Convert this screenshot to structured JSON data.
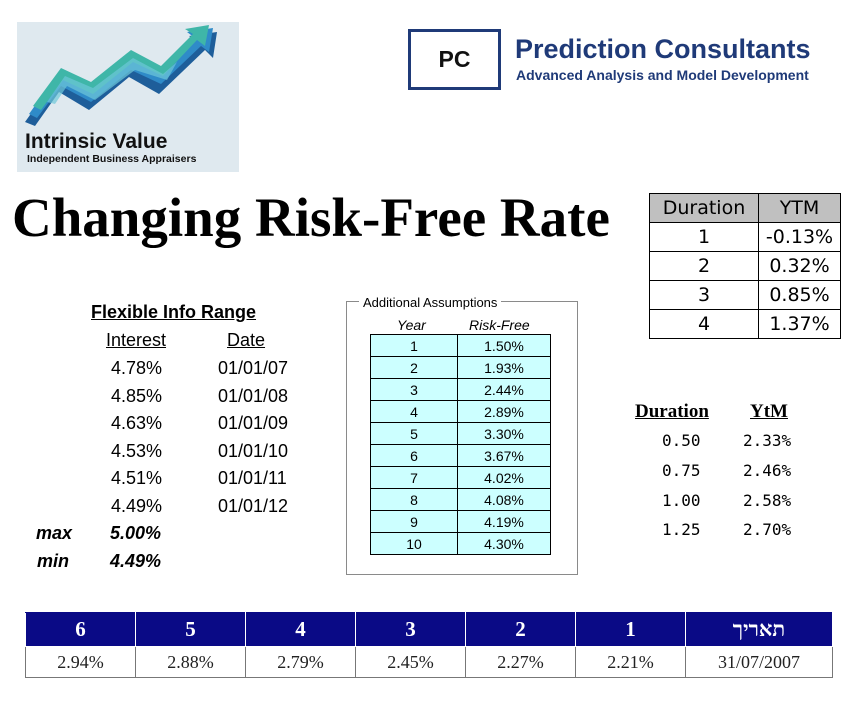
{
  "logos": {
    "intrinsic_value": {
      "name": "Intrinsic Value",
      "subtitle": "Independent Business Appraisers",
      "icon": "rising-arrows-logo-icon",
      "colors": [
        "#1e5e9a",
        "#2f8bc8",
        "#3fb6a8",
        "#6ec7d8"
      ]
    },
    "prediction_consultants": {
      "box_text": "PC",
      "name": "Prediction Consultants",
      "tagline": "Advanced Analysis and Model Development",
      "color": "#1f3a78"
    }
  },
  "title": "Changing Risk-Free Rate",
  "ytm_table": {
    "headers": [
      "Duration",
      "YTM"
    ],
    "rows": [
      [
        "1",
        "-0.13%"
      ],
      [
        "2",
        "0.32%"
      ],
      [
        "3",
        "0.85%"
      ],
      [
        "4",
        "1.37%"
      ]
    ]
  },
  "flex_range": {
    "heading": "Flexible Info Range",
    "col_interest": "Interest",
    "col_date": "Date",
    "rows": [
      [
        "4.78%",
        "01/01/07"
      ],
      [
        "4.85%",
        "01/01/08"
      ],
      [
        "4.63%",
        "01/01/09"
      ],
      [
        "4.53%",
        "01/01/10"
      ],
      [
        "4.51%",
        "01/01/11"
      ],
      [
        "4.49%",
        "01/01/12"
      ]
    ],
    "max_label": "max",
    "max_value": "5.00%",
    "min_label": "min",
    "min_value": "4.49%"
  },
  "assumptions": {
    "legend": "Additional Assumptions",
    "col_year": "Year",
    "col_rf": "Risk-Free",
    "cell_color": "#ccffff",
    "rows": [
      [
        "1",
        "1.50%"
      ],
      [
        "2",
        "1.93%"
      ],
      [
        "3",
        "2.44%"
      ],
      [
        "4",
        "2.89%"
      ],
      [
        "5",
        "3.30%"
      ],
      [
        "6",
        "3.67%"
      ],
      [
        "7",
        "4.02%"
      ],
      [
        "8",
        "4.08%"
      ],
      [
        "9",
        "4.19%"
      ],
      [
        "10",
        "4.30%"
      ]
    ]
  },
  "duration_ytm": {
    "col_duration": "Duration",
    "col_ytm": "YtM",
    "rows": [
      [
        "0.50",
        "2.33%"
      ],
      [
        "0.75",
        "2.46%"
      ],
      [
        "1.00",
        "2.58%"
      ],
      [
        "1.25",
        "2.70%"
      ]
    ]
  },
  "bottom_table": {
    "header_color": "#0a0a86",
    "headers": [
      "6",
      "5",
      "4",
      "3",
      "2",
      "1",
      "תאריך"
    ],
    "values": [
      "2.94%",
      "2.88%",
      "2.79%",
      "2.45%",
      "2.27%",
      "2.21%",
      "31/07/2007"
    ]
  }
}
